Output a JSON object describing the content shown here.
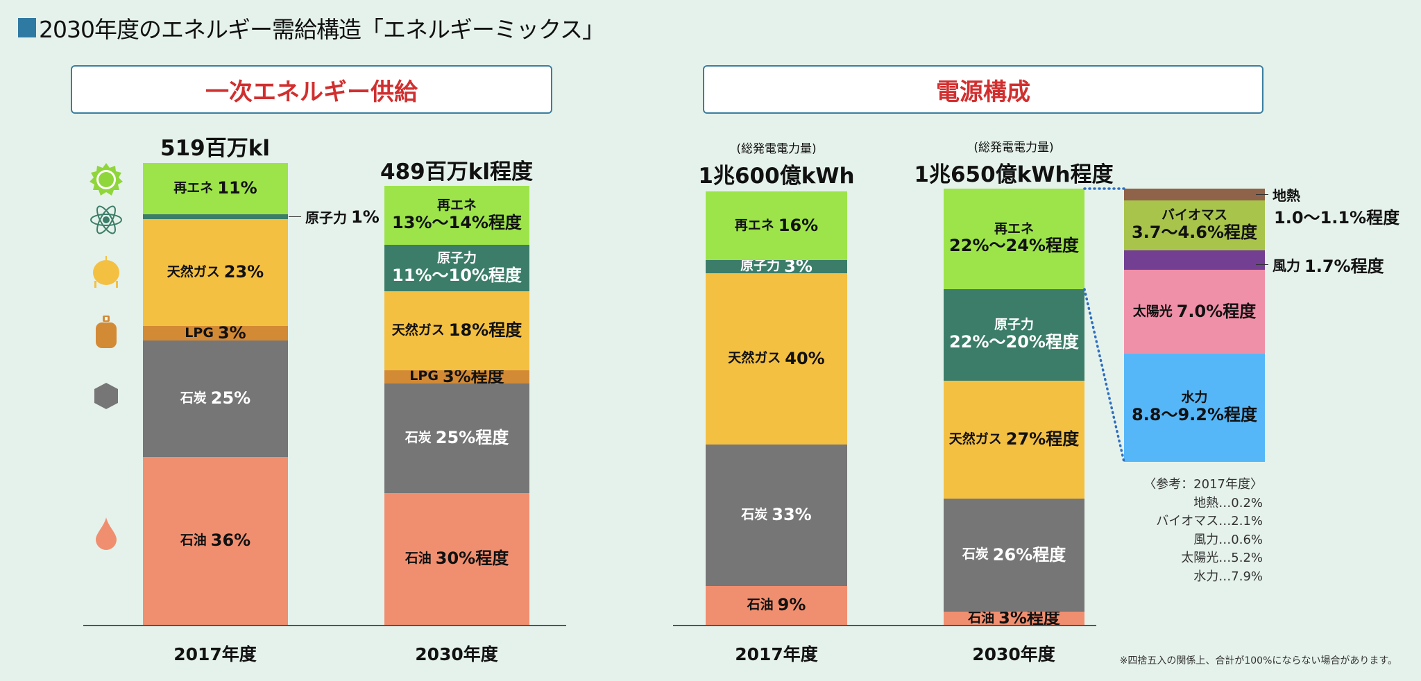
{
  "title": "2030年度のエネルギー需給構造「エネルギーミックス」",
  "colors": {
    "renewable": "#9de44a",
    "nuclear": "#3b7d68",
    "gas": "#f4c042",
    "lpg": "#d38a35",
    "coal": "#767676",
    "oil": "#f08f70",
    "geothermal": "#8f624a",
    "biomass": "#a8c44b",
    "wind": "#723f93",
    "solar": "#f090a8",
    "hydro": "#56b7f8",
    "header_border": "#3a7ea0",
    "header_text": "#d12f2f"
  },
  "icons": [
    "sun-icon",
    "atom-icon",
    "gas-tank-icon",
    "lpg-cylinder-icon",
    "coal-icon",
    "oil-drop-icon"
  ],
  "chart_data": [
    {
      "type": "bar",
      "stacked": true,
      "title": "一次エネルギー供給",
      "categories": [
        "2017年度",
        "2030年度"
      ],
      "totals": [
        "519百万kl",
        "489百万kl程度"
      ],
      "bars": [
        {
          "segments": [
            {
              "name": "再エネ",
              "value": "11%",
              "share": 11
            },
            {
              "name": "原子力",
              "value": "1%",
              "share": 1,
              "callout": true
            },
            {
              "name": "天然ガス",
              "value": "23%",
              "share": 23
            },
            {
              "name": "LPG",
              "value": "3%",
              "share": 3
            },
            {
              "name": "石炭",
              "value": "25%",
              "share": 25
            },
            {
              "name": "石油",
              "value": "36%",
              "share": 36
            }
          ]
        },
        {
          "segments": [
            {
              "name": "再エネ",
              "value": "13%〜14%程度",
              "share": 13.5
            },
            {
              "name": "原子力",
              "value": "11%〜10%程度",
              "share": 10.5
            },
            {
              "name": "天然ガス",
              "value": "18%程度",
              "share": 18
            },
            {
              "name": "LPG",
              "value": "3%程度",
              "share": 3
            },
            {
              "name": "石炭",
              "value": "25%程度",
              "share": 25
            },
            {
              "name": "石油",
              "value": "30%程度",
              "share": 30
            }
          ]
        }
      ]
    },
    {
      "type": "bar",
      "stacked": true,
      "title": "電源構成",
      "categories": [
        "2017年度",
        "2030年度"
      ],
      "subtitle": "(総発電電力量)",
      "totals": [
        "1兆600億kWh",
        "1兆650億kWh程度"
      ],
      "bars": [
        {
          "segments": [
            {
              "name": "再エネ",
              "value": "16%",
              "share": 16
            },
            {
              "name": "原子力",
              "value": "3%",
              "share": 3
            },
            {
              "name": "天然ガス",
              "value": "40%",
              "share": 40
            },
            {
              "name": "石炭",
              "value": "33%",
              "share": 33
            },
            {
              "name": "石油",
              "value": "9%",
              "share": 9
            }
          ]
        },
        {
          "segments": [
            {
              "name": "再エネ",
              "value": "22%〜24%程度",
              "share": 23
            },
            {
              "name": "原子力",
              "value": "22%〜20%程度",
              "share": 21
            },
            {
              "name": "天然ガス",
              "value": "27%程度",
              "share": 27
            },
            {
              "name": "石炭",
              "value": "26%程度",
              "share": 26
            },
            {
              "name": "石油",
              "value": "3%程度",
              "share": 3
            }
          ]
        }
      ],
      "renewable_breakdown": {
        "segments": [
          {
            "name": "地熱",
            "value": "1.0〜1.1%程度",
            "share": 1.05,
            "callout": true
          },
          {
            "name": "バイオマス",
            "value": "3.7〜4.6%程度",
            "share": 4.15
          },
          {
            "name": "風力",
            "value": "1.7%程度",
            "share": 1.7,
            "callout": true
          },
          {
            "name": "太陽光",
            "value": "7.0%程度",
            "share": 7.0
          },
          {
            "name": "水力",
            "value": "8.8〜9.2%程度",
            "share": 9.0
          }
        ]
      },
      "reference": {
        "heading": "〈参考：2017年度〉",
        "items": [
          "地熱…0.2%",
          "バイオマス…2.1%",
          "風力…0.6%",
          "太陽光…5.2%",
          "水力…7.9%"
        ]
      }
    }
  ],
  "footnote": "※四捨五入の関係上、合計が100%にならない場合があります。"
}
